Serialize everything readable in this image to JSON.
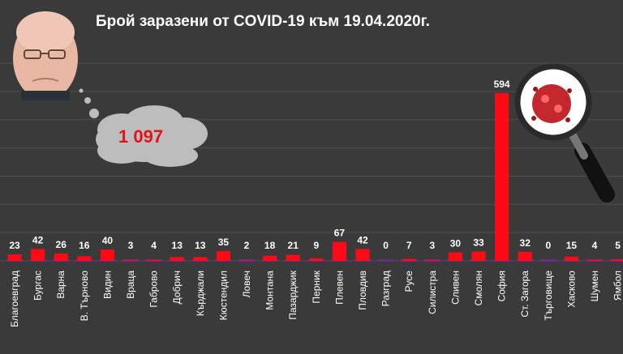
{
  "title": "Брой заразени от COVID-19 към 19.04.2020г.",
  "total_callout": "1 097",
  "colors": {
    "background": "#3a3a3a",
    "bar": "#ff0a14",
    "bar_base": "#6a2a8a",
    "gridline": "#4e4e4e",
    "label": "#ffffff",
    "callout_text": "#e0141e",
    "cloud": "#bdbdbd"
  },
  "decorations": {
    "portrait": "man-portrait-photo",
    "magnifier": "magnifying-glass-coronavirus-icon"
  },
  "chart_data": {
    "type": "bar",
    "title": "Брой заразени от COVID-19 към 19.04.2020г.",
    "xlabel": "",
    "ylabel": "",
    "grid": true,
    "legend": "none",
    "ylim": [
      0,
      700
    ],
    "categories": [
      "Благоевград",
      "Бургас",
      "Варна",
      "В. Търново",
      "Видин",
      "Враца",
      "Габрово",
      "Добрич",
      "Кърджали",
      "Кюстендил",
      "Ловеч",
      "Монтана",
      "Пазарджик",
      "Перник",
      "Плевен",
      "Пловдив",
      "Разград",
      "Русе",
      "Силистра",
      "Сливен",
      "Смолян",
      "София",
      "Ст. Загора",
      "Търговище",
      "Хасково",
      "Шумен",
      "Ямбол"
    ],
    "values": [
      23,
      42,
      26,
      16,
      40,
      3,
      4,
      13,
      13,
      35,
      2,
      18,
      21,
      9,
      67,
      42,
      0,
      7,
      3,
      30,
      33,
      594,
      32,
      0,
      15,
      4,
      5
    ]
  }
}
